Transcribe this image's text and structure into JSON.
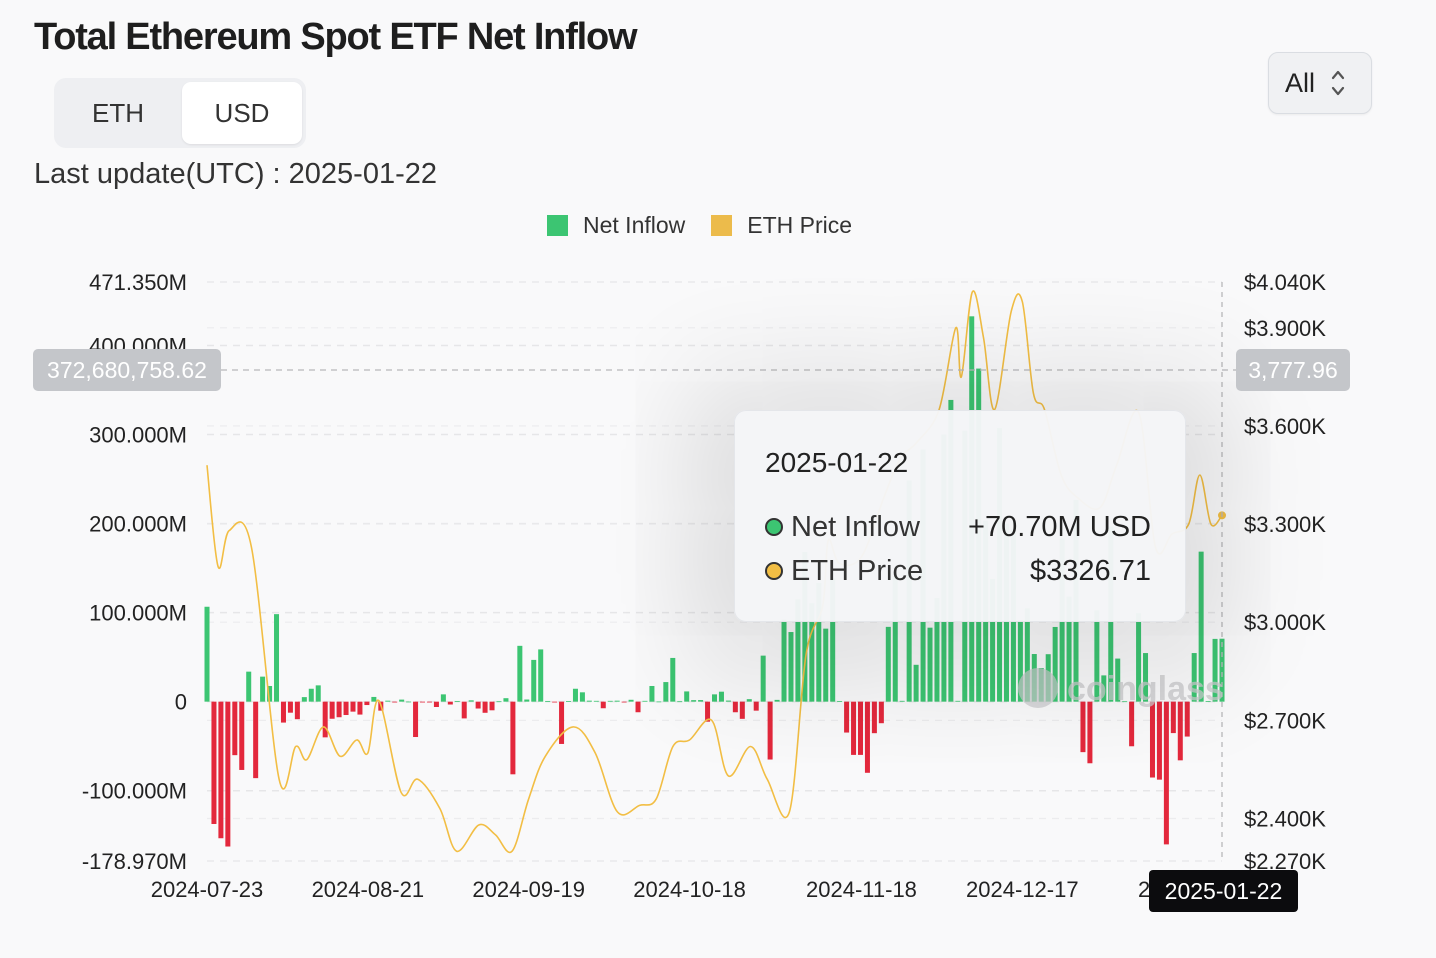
{
  "header": {
    "title": "Total Ethereum Spot ETF Net Inflow",
    "unit_toggle": [
      {
        "label": "ETH",
        "active": false
      },
      {
        "label": "USD",
        "active": true
      }
    ],
    "range_select": {
      "value": "All"
    },
    "last_update": "Last update(UTC) : 2025-01-22"
  },
  "colors": {
    "inflow_positive": "#3cc572",
    "inflow_negative": "#e3283c",
    "price_line": "#f2be44"
  },
  "legend": [
    {
      "label": "Net Inflow",
      "color": "#3cc572"
    },
    {
      "label": "ETH Price",
      "color": "#ecbb4b"
    }
  ],
  "tooltip": {
    "date": "2025-01-22",
    "rows": [
      {
        "label": "Net Inflow",
        "value": "+70.70M USD",
        "color": "#3cc572"
      },
      {
        "label": "ETH Price",
        "value": "$3326.71",
        "color": "#f2be44"
      }
    ]
  },
  "crosshair": {
    "left_value": "372,680,758.62",
    "right_value": "3,777.96",
    "x_value": "2025-01-22"
  },
  "watermark": "coinglass",
  "chart_data": {
    "type": "bar+line",
    "title": "Total Ethereum Spot ETF Net Inflow",
    "x_tick_labels": [
      "2024-07-23",
      "2024-08-21",
      "2024-09-19",
      "2024-10-18",
      "2024-11-18",
      "2024-12-17",
      "2025-01-22"
    ],
    "y_left": {
      "unit": "USD",
      "range": [
        -178970000,
        471350000
      ],
      "tick_values": [
        471350000,
        400000000,
        300000000,
        200000000,
        100000000,
        0,
        -100000000,
        -178970000
      ],
      "tick_labels": [
        "471.350M",
        "400.000M",
        "300.000M",
        "200.000M",
        "100.000M",
        "0",
        "-100.000M",
        "-178.970M"
      ]
    },
    "y_right": {
      "unit": "USD",
      "range": [
        2270,
        4040
      ],
      "tick_values": [
        4040,
        3900,
        3600,
        3300,
        3000,
        2700,
        2400,
        2270
      ],
      "tick_labels": [
        "$4.040K",
        "$3.900K",
        "$3.600K",
        "$3.300K",
        "$3.000K",
        "$2.700K",
        "$2.400K",
        "$2.270K"
      ]
    },
    "series": [
      {
        "name": "Net Inflow",
        "type": "bar",
        "unit": "M USD",
        "values": [
          106.6,
          -137.4,
          -153.4,
          -162.7,
          -60.1,
          -76.7,
          33.7,
          -85.9,
          28.1,
          17.6,
          98.3,
          -23.5,
          -12.4,
          -19.7,
          5.1,
          14.5,
          18.3,
          -40.1,
          -19.2,
          -17.5,
          -15.0,
          -11.2,
          -14.5,
          -3.8,
          5.3,
          -10.1,
          1.1,
          -0.6,
          2.3,
          0.1,
          -39.7,
          -0.3,
          -0.6,
          -6.0,
          8.2,
          -3.2,
          0.7,
          -18.8,
          1.5,
          -7.7,
          -12.5,
          -9.7,
          0.4,
          3.9,
          -81.6,
          62.7,
          2.4,
          46.9,
          58.7,
          0.6,
          -0.5,
          -47.5,
          0.6,
          14.5,
          10.5,
          1.1,
          0.9,
          -7.4,
          0.9,
          1.1,
          -0.3,
          2.1,
          -11.9,
          0.9,
          17.6,
          0.2,
          22.0,
          49.1,
          0.4,
          11.5,
          1.7,
          1.8,
          -22.5,
          8.2,
          11.2,
          1.2,
          -11.9,
          -19.3,
          2.8,
          -10.1,
          51.7,
          -65.0,
          2.0,
          92.2,
          78.2,
          115.0,
          168.1,
          110.6,
          133.2,
          82.0,
          138.8,
          0.5,
          -34.7,
          -59.8,
          -59.8,
          -79.9,
          -35.4,
          -24.2,
          84.0,
          141.2,
          0.9,
          248.4,
          41.4,
          283.2,
          83.1,
          116.4,
          300.0,
          338.9,
          0.9,
          304.3,
          432.8,
          374.1,
          203.2,
          137.9,
          307.3,
          199.8,
          193.2,
          91.1,
          104.8,
          53.5,
          37.8,
          53.3,
          83.9,
          183.2,
          118.0,
          226.6,
          -56.7,
          -69.2,
          102.5,
          29.5,
          196.7,
          48.4,
          0.4,
          -50.1,
          99.4,
          54.6,
          -85.2,
          -87.6,
          -160.3,
          -35.3,
          -65.9,
          -39.2,
          54.6,
          168.5,
          0.5,
          70.5,
          70.7
        ]
      },
      {
        "name": "ETH Price",
        "type": "line",
        "unit": "USD",
        "points": [
          [
            "2024-07-23",
            3480
          ],
          [
            "2024-07-25",
            3170
          ],
          [
            "2024-07-27",
            3280
          ],
          [
            "2024-07-31",
            3230
          ],
          [
            "2024-08-05",
            2520
          ],
          [
            "2024-08-08",
            2620
          ],
          [
            "2024-08-10",
            2580
          ],
          [
            "2024-08-13",
            2680
          ],
          [
            "2024-08-16",
            2590
          ],
          [
            "2024-08-19",
            2640
          ],
          [
            "2024-08-21",
            2600
          ],
          [
            "2024-08-23",
            2760
          ],
          [
            "2024-08-27",
            2480
          ],
          [
            "2024-08-30",
            2520
          ],
          [
            "2024-09-03",
            2430
          ],
          [
            "2024-09-06",
            2300
          ],
          [
            "2024-09-10",
            2380
          ],
          [
            "2024-09-13",
            2350
          ],
          [
            "2024-09-16",
            2300
          ],
          [
            "2024-09-19",
            2460
          ],
          [
            "2024-09-22",
            2590
          ],
          [
            "2024-09-27",
            2680
          ],
          [
            "2024-10-01",
            2600
          ],
          [
            "2024-10-05",
            2420
          ],
          [
            "2024-10-09",
            2440
          ],
          [
            "2024-10-12",
            2460
          ],
          [
            "2024-10-15",
            2620
          ],
          [
            "2024-10-18",
            2640
          ],
          [
            "2024-10-22",
            2700
          ],
          [
            "2024-10-25",
            2530
          ],
          [
            "2024-10-29",
            2620
          ],
          [
            "2024-11-01",
            2520
          ],
          [
            "2024-11-05",
            2420
          ],
          [
            "2024-11-08",
            2900
          ],
          [
            "2024-11-11",
            3050
          ],
          [
            "2024-11-12",
            3250
          ],
          [
            "2024-11-14",
            3180
          ],
          [
            "2024-11-18",
            3200
          ],
          [
            "2024-11-22",
            3380
          ],
          [
            "2024-11-25",
            3500
          ],
          [
            "2024-11-28",
            3550
          ],
          [
            "2024-12-02",
            3650
          ],
          [
            "2024-12-05",
            3900
          ],
          [
            "2024-12-06",
            3750
          ],
          [
            "2024-12-08",
            4010
          ],
          [
            "2024-12-10",
            3870
          ],
          [
            "2024-12-12",
            3650
          ],
          [
            "2024-12-15",
            3950
          ],
          [
            "2024-12-17",
            3980
          ],
          [
            "2024-12-19",
            3700
          ],
          [
            "2024-12-21",
            3650
          ],
          [
            "2024-12-24",
            3450
          ],
          [
            "2024-12-27",
            3380
          ],
          [
            "2024-12-31",
            3350
          ],
          [
            "2025-01-03",
            3480
          ],
          [
            "2025-01-07",
            3640
          ],
          [
            "2025-01-10",
            3230
          ],
          [
            "2025-01-13",
            3270
          ],
          [
            "2025-01-16",
            3300
          ],
          [
            "2025-01-18",
            3450
          ],
          [
            "2025-01-20",
            3300
          ],
          [
            "2025-01-22",
            3326.71
          ]
        ]
      }
    ],
    "highlighted_point": {
      "date": "2025-01-22",
      "net_inflow": "+70.70M USD",
      "eth_price": "$3326.71"
    }
  }
}
